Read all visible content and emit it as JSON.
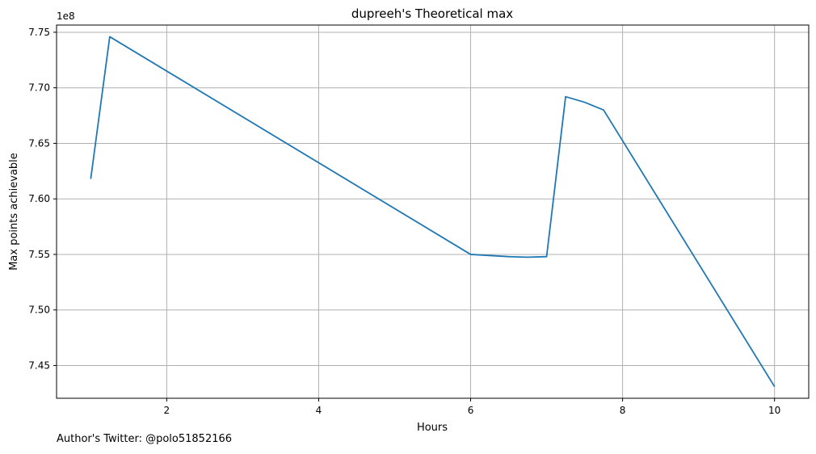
{
  "footer": {
    "note": "Author's Twitter: @polo51852166"
  },
  "chart_data": {
    "type": "line",
    "title": "dupreeh's Theoretical max",
    "xlabel": "Hours",
    "ylabel": "Max points achievable",
    "offset_label": "1e8",
    "xlim": [
      0.55,
      10.45
    ],
    "ylim": [
      7.4205,
      7.7565
    ],
    "x_ticks": [
      2,
      4,
      6,
      8,
      10
    ],
    "x_tick_labels": [
      "2",
      "4",
      "6",
      "8",
      "10"
    ],
    "y_ticks": [
      7.45,
      7.5,
      7.55,
      7.6,
      7.65,
      7.7,
      7.75
    ],
    "y_tick_labels": [
      "7.45",
      "7.50",
      "7.55",
      "7.60",
      "7.65",
      "7.70",
      "7.75"
    ],
    "grid": true,
    "series": [
      {
        "color": "#1f77b4",
        "x": [
          1.0,
          1.25,
          6.0,
          6.25,
          6.5,
          6.75,
          7.0,
          7.25,
          7.5,
          7.75,
          10.0
        ],
        "y": [
          7.618,
          7.746,
          7.55,
          7.549,
          7.548,
          7.5475,
          7.548,
          7.692,
          7.687,
          7.68,
          7.431
        ]
      }
    ]
  }
}
